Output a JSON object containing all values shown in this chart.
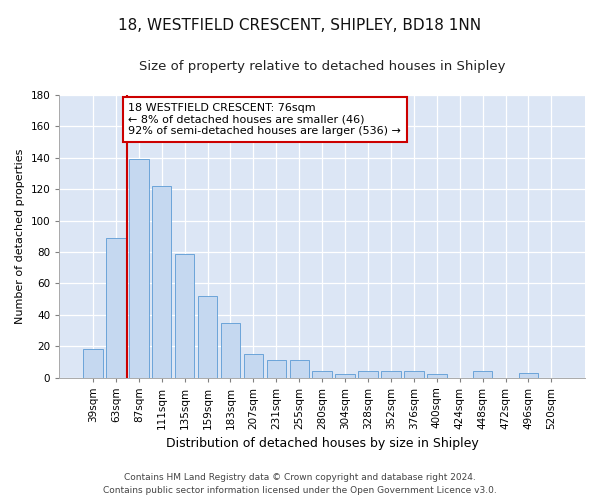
{
  "title": "18, WESTFIELD CRESCENT, SHIPLEY, BD18 1NN",
  "subtitle": "Size of property relative to detached houses in Shipley",
  "xlabel": "Distribution of detached houses by size in Shipley",
  "ylabel": "Number of detached properties",
  "bar_labels": [
    "39sqm",
    "63sqm",
    "87sqm",
    "111sqm",
    "135sqm",
    "159sqm",
    "183sqm",
    "207sqm",
    "231sqm",
    "255sqm",
    "280sqm",
    "304sqm",
    "328sqm",
    "352sqm",
    "376sqm",
    "400sqm",
    "424sqm",
    "448sqm",
    "472sqm",
    "496sqm",
    "520sqm"
  ],
  "bar_values": [
    18,
    89,
    139,
    122,
    79,
    52,
    35,
    15,
    11,
    11,
    4,
    2,
    4,
    4,
    4,
    2,
    0,
    4,
    0,
    3,
    0
  ],
  "bar_color": "#c5d8f0",
  "bar_edge_color": "#5b9bd5",
  "vline_x": 1.5,
  "vline_color": "#cc0000",
  "annotation_text": "18 WESTFIELD CRESCENT: 76sqm\n← 8% of detached houses are smaller (46)\n92% of semi-detached houses are larger (536) →",
  "annotation_box_color": "#ffffff",
  "annotation_box_edge": "#cc0000",
  "ylim": [
    0,
    180
  ],
  "yticks": [
    0,
    20,
    40,
    60,
    80,
    100,
    120,
    140,
    160,
    180
  ],
  "footnote": "Contains HM Land Registry data © Crown copyright and database right 2024.\nContains public sector information licensed under the Open Government Licence v3.0.",
  "fig_bg_color": "#ffffff",
  "plot_bg_color": "#dce6f5",
  "title_fontsize": 11,
  "subtitle_fontsize": 9.5,
  "xlabel_fontsize": 9,
  "ylabel_fontsize": 8,
  "tick_fontsize": 7.5,
  "annotation_fontsize": 8,
  "footnote_fontsize": 6.5
}
